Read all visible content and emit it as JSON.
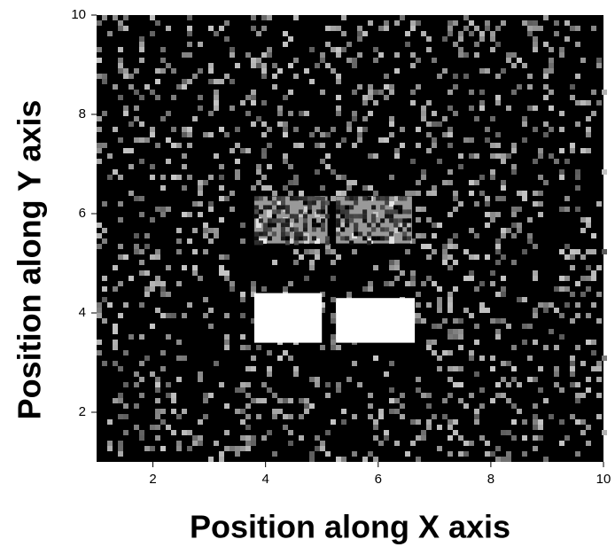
{
  "chart_data": {
    "type": "heatmap",
    "x_label": "Position along X axis",
    "y_label": "Position along Y axis",
    "xlim": [
      1,
      10
    ],
    "ylim": [
      1,
      10
    ],
    "xticks": [
      2,
      4,
      6,
      8,
      10
    ],
    "yticks": [
      2,
      4,
      6,
      8,
      10
    ],
    "background": "#000000",
    "color": "#ffffff",
    "regions": [
      {
        "x": [
          3.8,
          5.0
        ],
        "y": [
          3.4,
          4.4
        ],
        "intensity": 1.0
      },
      {
        "x": [
          5.25,
          6.65
        ],
        "y": [
          3.4,
          4.3
        ],
        "intensity": 1.0
      },
      {
        "x": [
          3.8,
          5.1
        ],
        "y": [
          5.4,
          6.35
        ],
        "intensity": 0.6
      },
      {
        "x": [
          5.25,
          6.6
        ],
        "y": [
          5.4,
          6.35
        ],
        "intensity": 0.6
      }
    ]
  }
}
